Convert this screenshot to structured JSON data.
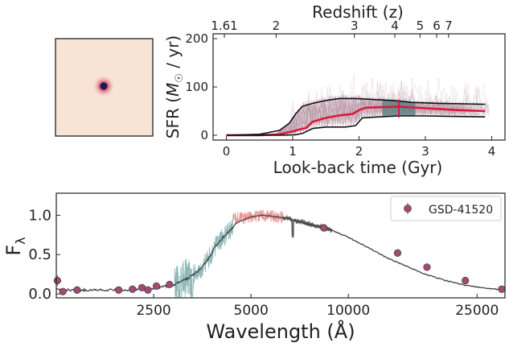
{
  "cutout": {
    "colors": {
      "background": "#f7e4d4",
      "core": "#1b1a5a",
      "halo": "#d6425f",
      "frame": "#111111"
    }
  },
  "chart_data": [
    {
      "type": "line",
      "xlabel": "Look-back time (Gyr)",
      "ylabel": "SFR (M☉ / yr)",
      "ylabel_parts": {
        "prefix": "SFR (",
        "symbol": "M",
        "subscript": "☉",
        "suffix": " / yr)"
      },
      "top_axis_label": "Redshift (z)",
      "xlim": [
        -0.2,
        4.2
      ],
      "ylim": [
        -10,
        210
      ],
      "xticks": [
        "0",
        "1",
        "2",
        "3",
        "4"
      ],
      "yticks": [
        "0",
        "100",
        "200"
      ],
      "top_ticks": [
        {
          "label": "1.61",
          "t": -0.03
        },
        {
          "label": "2",
          "t": 0.75
        },
        {
          "label": "3",
          "t": 1.93
        },
        {
          "label": "4",
          "t": 2.54
        },
        {
          "label": "5",
          "t": 2.92
        },
        {
          "label": "6",
          "t": 3.17
        },
        {
          "label": "7",
          "t": 3.35
        }
      ],
      "series": [
        {
          "role": "median",
          "color": "#d81b3c",
          "x": [
            0,
            0.5,
            0.8,
            0.9,
            1.0,
            1.1,
            1.2,
            1.3,
            1.5,
            1.7,
            1.9,
            2.0,
            2.1,
            2.3,
            2.6,
            3.0,
            3.5,
            3.9
          ],
          "y": [
            0,
            0,
            2,
            5,
            8,
            12,
            15,
            28,
            36,
            41,
            44,
            52,
            57,
            58,
            59,
            56,
            52,
            50
          ]
        },
        {
          "role": "upper",
          "color": "#111111",
          "x": [
            0,
            0.5,
            0.8,
            0.95,
            1.05,
            1.15,
            1.3,
            1.5,
            1.7,
            1.95,
            2.2,
            2.5,
            2.8,
            3.2,
            3.6,
            3.9
          ],
          "y": [
            0,
            2,
            10,
            25,
            45,
            60,
            66,
            72,
            76,
            76,
            74,
            72,
            68,
            66,
            65,
            64
          ]
        },
        {
          "role": "lower",
          "color": "#111111",
          "x": [
            0,
            0.8,
            1.05,
            1.15,
            1.3,
            1.5,
            1.8,
            1.95,
            2.05,
            2.3,
            2.6,
            3.0,
            3.4,
            3.9
          ],
          "y": [
            0,
            0,
            1,
            4,
            14,
            17,
            17,
            20,
            36,
            38,
            40,
            40,
            39,
            38
          ]
        }
      ],
      "markers": [
        {
          "t": 2.6,
          "color": "#d81b3c"
        }
      ],
      "shaded_band": {
        "x0": 2.35,
        "x1": 2.85,
        "color": "#4f7d7d"
      }
    },
    {
      "type": "line",
      "xlabel": "Wavelength (Å)",
      "ylabel": "F",
      "ylabel_subscript": "λ",
      "xscale": "log",
      "xlim": [
        1250,
        30500
      ],
      "ylim": [
        -0.05,
        1.28
      ],
      "xticks": [
        {
          "value": 2500,
          "label": "2500"
        },
        {
          "value": 5000,
          "label": "5000"
        },
        {
          "value": 10000,
          "label": "10000"
        },
        {
          "value": 25000,
          "label": "25000"
        }
      ],
      "yticks": [
        "0.0",
        "0.5",
        "1.0"
      ],
      "legend": {
        "label": "GSD-41520",
        "placement": "top-right"
      },
      "model": {
        "color": "#444444",
        "x": [
          1250,
          1500,
          2000,
          2300,
          2600,
          2900,
          3200,
          3500,
          3700,
          3900,
          4100,
          4300,
          4500,
          5000,
          5500,
          6000,
          6500,
          7000,
          7500,
          8000,
          8500,
          9000,
          10000,
          11000,
          12000,
          13000,
          14000,
          15000,
          17000,
          20000,
          23000,
          26000,
          30000
        ],
        "y": [
          0.05,
          0.05,
          0.05,
          0.06,
          0.08,
          0.12,
          0.2,
          0.32,
          0.45,
          0.62,
          0.72,
          0.8,
          0.9,
          0.98,
          1.0,
          0.98,
          0.96,
          0.92,
          0.89,
          0.86,
          0.84,
          0.8,
          0.72,
          0.63,
          0.55,
          0.47,
          0.41,
          0.36,
          0.26,
          0.17,
          0.11,
          0.08,
          0.05
        ]
      },
      "spectra": [
        {
          "name": "blue",
          "color": "#5f9a9a",
          "range": [
            2900,
            4400
          ]
        },
        {
          "name": "red",
          "color": "#e36a6a",
          "range": [
            4400,
            6300
          ]
        },
        {
          "name": "grey",
          "color": "#555555",
          "range": [
            6300,
            8900
          ]
        }
      ],
      "photometry": {
        "color": "#a04a74",
        "points": [
          {
            "x": 1260,
            "y": 0.17,
            "err": 0.07
          },
          {
            "x": 1310,
            "y": 0.03,
            "err": 0.0
          },
          {
            "x": 1450,
            "y": 0.05,
            "err": 0.0
          },
          {
            "x": 1950,
            "y": 0.05,
            "err": 0.0
          },
          {
            "x": 2150,
            "y": 0.06,
            "err": 0.0
          },
          {
            "x": 2300,
            "y": 0.08,
            "err": 0.0
          },
          {
            "x": 2400,
            "y": 0.05,
            "err": 0.0
          },
          {
            "x": 2550,
            "y": 0.1,
            "err": 0.04
          },
          {
            "x": 2800,
            "y": 0.12,
            "err": 0.03
          },
          {
            "x": 8400,
            "y": 0.84,
            "err": 0.0
          },
          {
            "x": 14200,
            "y": 0.52,
            "err": 0.0
          },
          {
            "x": 17500,
            "y": 0.34,
            "err": 0.0
          },
          {
            "x": 23000,
            "y": 0.17,
            "err": 0.0
          },
          {
            "x": 29800,
            "y": 0.06,
            "err": 0.0
          }
        ]
      }
    }
  ]
}
